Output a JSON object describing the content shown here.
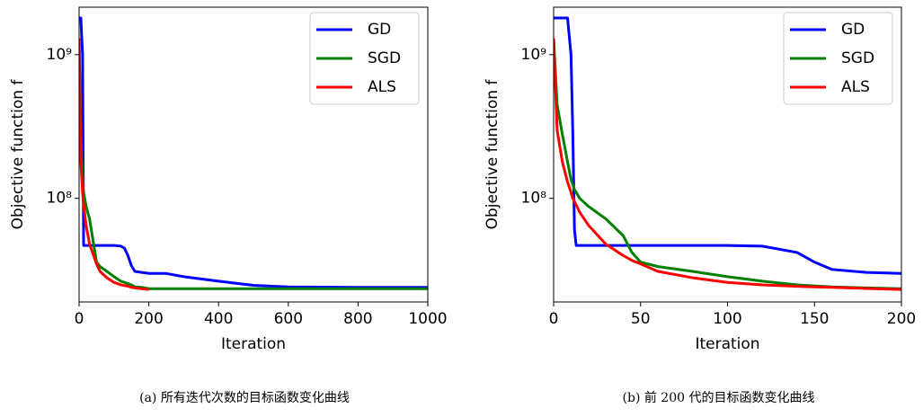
{
  "chart_data": [
    {
      "type": "line",
      "caption": "(a) 所有迭代次数的目标函数变化曲线",
      "xlabel": "Iteration",
      "ylabel": "Objective function f",
      "log_y": true,
      "legend": "upper right",
      "xlim": [
        0,
        1000
      ],
      "xticks": [
        0,
        200,
        400,
        600,
        800,
        1000
      ],
      "ylim": [
        19000000,
        2140000000
      ],
      "yticks": [
        {
          "value": 100000000,
          "label": "10⁸"
        },
        {
          "value": 1000000000,
          "label": "10⁹"
        }
      ],
      "x": [
        0,
        5,
        10,
        13,
        20,
        30,
        50,
        60,
        80,
        100,
        120,
        130,
        140,
        150,
        160,
        180,
        200,
        250,
        300,
        400,
        500,
        600,
        800,
        1000
      ],
      "series": [
        {
          "name": "GD",
          "color": "#0000ff",
          "values": [
            1800000000,
            1800000000,
            1000000000,
            47000000,
            47000000,
            47000000,
            47000000,
            47000000,
            47000000,
            47000000,
            46500000,
            45000000,
            40000000,
            34000000,
            31000000,
            30500000,
            30000000,
            30000000,
            28500000,
            26500000,
            24800000,
            24200000,
            24000000,
            24000000
          ]
        },
        {
          "name": "SGD",
          "color": "#008000",
          "values": [
            1300000000,
            280000000,
            135000000,
            110000000,
            88000000,
            72000000,
            36000000,
            33500000,
            31000000,
            28500000,
            26500000,
            26000000,
            25500000,
            25000000,
            24200000,
            24000000,
            23500000,
            23500000,
            23500000,
            23500000,
            23500000,
            23500000,
            23500000,
            23500000
          ]
        },
        {
          "name": "ALS",
          "color": "#ff0000",
          "values": [
            1300000000,
            180000000,
            110000000,
            90000000,
            65000000,
            48000000,
            35000000,
            31000000,
            28000000,
            26000000,
            25000000,
            24700000,
            24500000,
            24000000,
            23800000,
            23500000,
            23200000,
            null,
            null,
            null,
            null,
            null,
            null,
            null
          ]
        }
      ]
    },
    {
      "type": "line",
      "caption": "(b) 前 200 代的目标函数变化曲线",
      "xlabel": "Iteration",
      "ylabel": "Objective function f",
      "log_y": true,
      "legend": "upper right",
      "xlim": [
        0,
        200
      ],
      "xticks": [
        0,
        50,
        100,
        150,
        200
      ],
      "ylim": [
        19000000,
        2140000000
      ],
      "yticks": [
        {
          "value": 100000000,
          "label": "10⁸"
        },
        {
          "value": 1000000000,
          "label": "10⁹"
        }
      ],
      "x": [
        0,
        2,
        5,
        8,
        10,
        11,
        12,
        13,
        15,
        20,
        30,
        40,
        45,
        50,
        60,
        80,
        100,
        120,
        140,
        150,
        160,
        180,
        200
      ],
      "series": [
        {
          "name": "GD",
          "color": "#0000ff",
          "values": [
            1800000000,
            1800000000,
            1800000000,
            1800000000,
            1000000000,
            300000000,
            60000000,
            47000000,
            47000000,
            47000000,
            47000000,
            47000000,
            47000000,
            47000000,
            47000000,
            47000000,
            47000000,
            46500000,
            42000000,
            36000000,
            32000000,
            30500000,
            30000000
          ]
        },
        {
          "name": "SGD",
          "color": "#008000",
          "values": [
            1300000000,
            450000000,
            280000000,
            180000000,
            135000000,
            125000000,
            115000000,
            110000000,
            100000000,
            88000000,
            72000000,
            55000000,
            42000000,
            36000000,
            33500000,
            31000000,
            28500000,
            26500000,
            25000000,
            24600000,
            24200000,
            23800000,
            23500000
          ]
        },
        {
          "name": "ALS",
          "color": "#ff0000",
          "values": [
            1300000000,
            300000000,
            180000000,
            130000000,
            110000000,
            100000000,
            95000000,
            90000000,
            80000000,
            65000000,
            48000000,
            40000000,
            37000000,
            35000000,
            31000000,
            28000000,
            26000000,
            25000000,
            24400000,
            24200000,
            24000000,
            23600000,
            23200000
          ]
        }
      ]
    }
  ]
}
